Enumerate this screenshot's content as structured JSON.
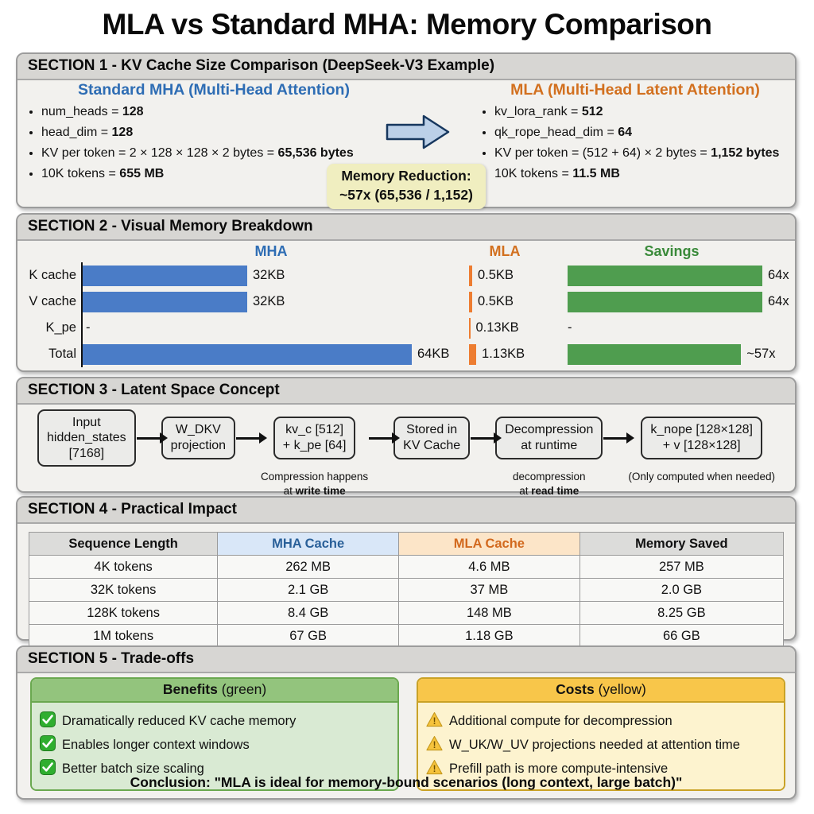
{
  "title": "MLA vs Standard MHA: Memory Comparison",
  "colors": {
    "mha_blue": "#2e6db4",
    "bar_blue": "#4a7cc7",
    "mla_orange": "#d2701f",
    "bar_orange": "#ed7d31",
    "savings_green": "#3a8a3a",
    "bar_green": "#4f9d4f",
    "reduction_box_bg": "#f0eec0",
    "benefits_green_bg": "#d9ead3",
    "costs_yellow_bg": "#fdf3cf"
  },
  "section1": {
    "header": "SECTION 1 - KV Cache Size Comparison (DeepSeek-V3 Example)",
    "mha_heading": "Standard MHA (Multi-Head Attention)",
    "mha_bullets": [
      {
        "text": "num_heads = ",
        "bold": "128"
      },
      {
        "text": "head_dim = ",
        "bold": "128"
      },
      {
        "text": "KV per token = 2 × 128 × 128 × 2 bytes = ",
        "bold": "65,536 bytes"
      },
      {
        "text": "10K tokens = ",
        "bold": "655 MB"
      }
    ],
    "mla_heading": "MLA (Multi-Head Latent Attention)",
    "mla_bullets": [
      {
        "text": "kv_lora_rank = ",
        "bold": "512"
      },
      {
        "text": "qk_rope_head_dim = ",
        "bold": "64"
      },
      {
        "text": "KV per token = (512 + 64) × 2 bytes = ",
        "bold": "1,152 bytes"
      },
      {
        "text": "10K tokens = ",
        "bold": "11.5 MB"
      }
    ],
    "reduction_line1": "Memory Reduction:",
    "reduction_line2": "~57x (65,536 / 1,152)"
  },
  "section2": {
    "header": "SECTION 2 - Visual Memory Breakdown"
  },
  "chart_data": {
    "type": "bar",
    "title": "Visual Memory Breakdown",
    "categories": [
      "K cache",
      "V cache",
      "K_pe",
      "Total"
    ],
    "column_headers": [
      "MHA",
      "MLA",
      "Savings"
    ],
    "series": [
      {
        "name": "MHA",
        "unit": "KB",
        "values": [
          32,
          32,
          null,
          64
        ],
        "labels": [
          "32KB",
          "32KB",
          "-",
          "64KB"
        ]
      },
      {
        "name": "MLA",
        "unit": "KB",
        "values": [
          0.5,
          0.5,
          0.13,
          1.13
        ],
        "labels": [
          "0.5KB",
          "0.5KB",
          "0.13KB",
          "1.13KB"
        ]
      },
      {
        "name": "Savings",
        "unit": "x",
        "values": [
          64,
          64,
          null,
          57
        ],
        "labels": [
          "64x",
          "64x",
          "-",
          "~57x"
        ]
      }
    ],
    "xlim_mha_kb": [
      0,
      64
    ],
    "legend_position": "top",
    "grid": false
  },
  "section3": {
    "header": "SECTION 3 - Latent Space Concept",
    "steps": [
      {
        "lines": [
          "Input",
          "hidden_states",
          "[7168]"
        ]
      },
      {
        "lines": [
          "W_DKV",
          "projection"
        ]
      },
      {
        "lines": [
          "kv_c [512]",
          "+ k_pe [64]"
        ],
        "caption": {
          "line1": "Compression happens",
          "line2_pre": "at ",
          "line2_bold": "write time"
        }
      },
      {
        "lines": [
          "Stored in",
          "KV Cache"
        ]
      },
      {
        "lines": [
          "Decompression",
          "at runtime"
        ],
        "caption": {
          "line1": "decompression",
          "line2_pre": "at ",
          "line2_bold": "read time"
        }
      },
      {
        "lines": [
          "k_nope [128×128]",
          "+ v [128×128]"
        ],
        "caption": {
          "line1": "(Only computed when needed)"
        }
      }
    ]
  },
  "section4": {
    "header": "SECTION 4 - Practical Impact",
    "table": {
      "columns": [
        "Sequence Length",
        "MHA Cache",
        "MLA Cache",
        "Memory Saved"
      ],
      "rows": [
        [
          "4K tokens",
          "262 MB",
          "4.6 MB",
          "257 MB"
        ],
        [
          "32K tokens",
          "2.1 GB",
          "37 MB",
          "2.0 GB"
        ],
        [
          "128K tokens",
          "8.4 GB",
          "148 MB",
          "8.25 GB"
        ],
        [
          "1M tokens",
          "67 GB",
          "1.18 GB",
          "66 GB"
        ]
      ]
    }
  },
  "section5": {
    "header": "SECTION 5 - Trade-offs",
    "benefits": {
      "title_bold": "Benefits",
      "title_rest": " (green)",
      "items": [
        "Dramatically reduced KV cache memory",
        "Enables longer context windows",
        "Better batch size scaling"
      ]
    },
    "costs": {
      "title_bold": "Costs",
      "title_rest": " (yellow)",
      "items": [
        "Additional compute for decompression",
        "W_UK/W_UV projections needed at attention time",
        "Prefill path is more compute-intensive"
      ]
    },
    "conclusion": "Conclusion: \"MLA is ideal for memory-bound scenarios (long context, large batch)\""
  }
}
